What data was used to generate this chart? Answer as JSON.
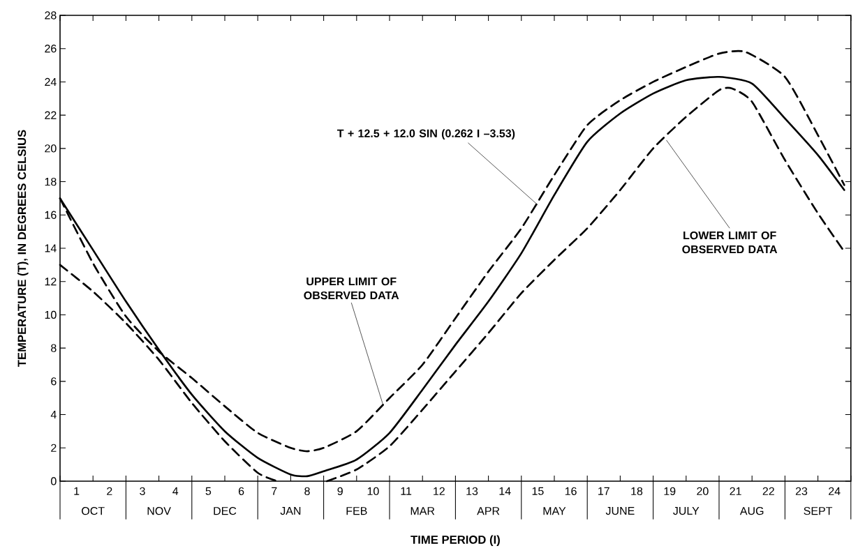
{
  "chart_data": {
    "type": "line",
    "xlabel": "TIME PERIOD (I)",
    "ylabel": "TEMPERATURE (T), IN DEGREES CELSIUS",
    "xlim": [
      0,
      24
    ],
    "ylim": [
      0,
      28
    ],
    "xticks": [
      {
        "value": 0,
        "label": null
      },
      {
        "value": 0.5,
        "label": "1"
      },
      {
        "value": 1,
        "label": null
      },
      {
        "value": 1.5,
        "label": "2"
      },
      {
        "value": 2,
        "label": null
      },
      {
        "value": 2.5,
        "label": "3"
      },
      {
        "value": 3,
        "label": null
      },
      {
        "value": 3.5,
        "label": "4"
      },
      {
        "value": 4,
        "label": null
      },
      {
        "value": 4.5,
        "label": "5"
      },
      {
        "value": 5,
        "label": null
      },
      {
        "value": 5.5,
        "label": "6"
      },
      {
        "value": 6,
        "label": null
      },
      {
        "value": 6.5,
        "label": "7"
      },
      {
        "value": 7,
        "label": null
      },
      {
        "value": 7.5,
        "label": "8"
      },
      {
        "value": 8,
        "label": null
      },
      {
        "value": 8.5,
        "label": "9"
      },
      {
        "value": 9,
        "label": null
      },
      {
        "value": 9.5,
        "label": "10"
      },
      {
        "value": 10,
        "label": null
      },
      {
        "value": 10.5,
        "label": "11"
      },
      {
        "value": 11,
        "label": null
      },
      {
        "value": 11.5,
        "label": "12"
      },
      {
        "value": 12,
        "label": null
      },
      {
        "value": 12.5,
        "label": "13"
      },
      {
        "value": 13,
        "label": null
      },
      {
        "value": 13.5,
        "label": "14"
      },
      {
        "value": 14,
        "label": null
      },
      {
        "value": 14.5,
        "label": "15"
      },
      {
        "value": 15,
        "label": null
      },
      {
        "value": 15.5,
        "label": "16"
      },
      {
        "value": 16,
        "label": null
      },
      {
        "value": 16.5,
        "label": "17"
      },
      {
        "value": 17,
        "label": null
      },
      {
        "value": 17.5,
        "label": "18"
      },
      {
        "value": 18,
        "label": null
      },
      {
        "value": 18.5,
        "label": "19"
      },
      {
        "value": 19,
        "label": null
      },
      {
        "value": 19.5,
        "label": "20"
      },
      {
        "value": 20,
        "label": null
      },
      {
        "value": 20.5,
        "label": "21"
      },
      {
        "value": 21,
        "label": null
      },
      {
        "value": 21.5,
        "label": "22"
      },
      {
        "value": 22,
        "label": null
      },
      {
        "value": 22.5,
        "label": "23"
      },
      {
        "value": 23,
        "label": null
      },
      {
        "value": 23.5,
        "label": "24"
      },
      {
        "value": 24,
        "label": null
      }
    ],
    "yticks": [
      0,
      2,
      4,
      6,
      8,
      10,
      12,
      14,
      16,
      18,
      20,
      22,
      24,
      26,
      28
    ],
    "marker": "none",
    "series": [
      {
        "color": "#000000",
        "line_style": "solid",
        "x": [
          0,
          1,
          2,
          3,
          4,
          5,
          6,
          7,
          7.5,
          8,
          9,
          10,
          11,
          12,
          13,
          14,
          15,
          16,
          17,
          18,
          19,
          20,
          21,
          22,
          23,
          23.8
        ],
        "values": [
          17.0,
          13.9,
          10.8,
          7.9,
          5.2,
          3.0,
          1.4,
          0.4,
          0.3,
          0.6,
          1.3,
          2.9,
          5.5,
          8.2,
          10.8,
          13.7,
          17.2,
          20.4,
          22.1,
          23.3,
          24.1,
          24.3,
          23.9,
          21.8,
          19.6,
          17.5
        ]
      },
      {
        "color": "#000000",
        "line_style": "dashed",
        "x": [
          0,
          1,
          2,
          3,
          4,
          5,
          6,
          7,
          7.5,
          8,
          9,
          10,
          11,
          12,
          13,
          14,
          15,
          16,
          17,
          18,
          19,
          20,
          20.8,
          22,
          23,
          23.8
        ],
        "values": [
          17.0,
          13.1,
          9.9,
          7.8,
          6.2,
          4.5,
          2.9,
          2.0,
          1.8,
          2.0,
          3.0,
          5.0,
          7.0,
          9.8,
          12.6,
          15.2,
          18.4,
          21.4,
          22.9,
          24.0,
          24.9,
          25.7,
          25.8,
          24.3,
          20.8,
          17.8
        ]
      },
      {
        "color": "#000000",
        "line_style": "dashed",
        "x": [
          0,
          1,
          2,
          3,
          4,
          5,
          6,
          6.6,
          7.3,
          8.1,
          9,
          10,
          11,
          12,
          13,
          14,
          15,
          16,
          17,
          18,
          19,
          20,
          20.4,
          21,
          22,
          23,
          23.8
        ],
        "values": [
          13.0,
          11.4,
          9.5,
          7.3,
          4.7,
          2.4,
          0.5,
          0,
          null,
          0,
          0.7,
          2.1,
          4.3,
          6.6,
          8.9,
          11.3,
          13.3,
          15.2,
          17.5,
          20.0,
          21.9,
          23.5,
          23.6,
          22.8,
          19.3,
          16.1,
          13.8
        ]
      }
    ],
    "annotations": [
      {
        "text": "T + 12.5 + 12.0 SIN (0.262 I –3.53)",
        "x": 14.5,
        "y": 16.6
      },
      {
        "text": "UPPER LIMIT OF OBSERVED DATA",
        "x": 9.8,
        "y": 4.6
      },
      {
        "text": "LOWER LIMIT OF OBSERVED DATA",
        "x": 18.4,
        "y": 20.5
      },
      "OCT",
      "NOV",
      "DEC",
      "JAN",
      "FEB",
      "MAR",
      "APR",
      "MAY",
      "JUNE",
      "JULY",
      "AUG",
      "SEPT"
    ]
  }
}
